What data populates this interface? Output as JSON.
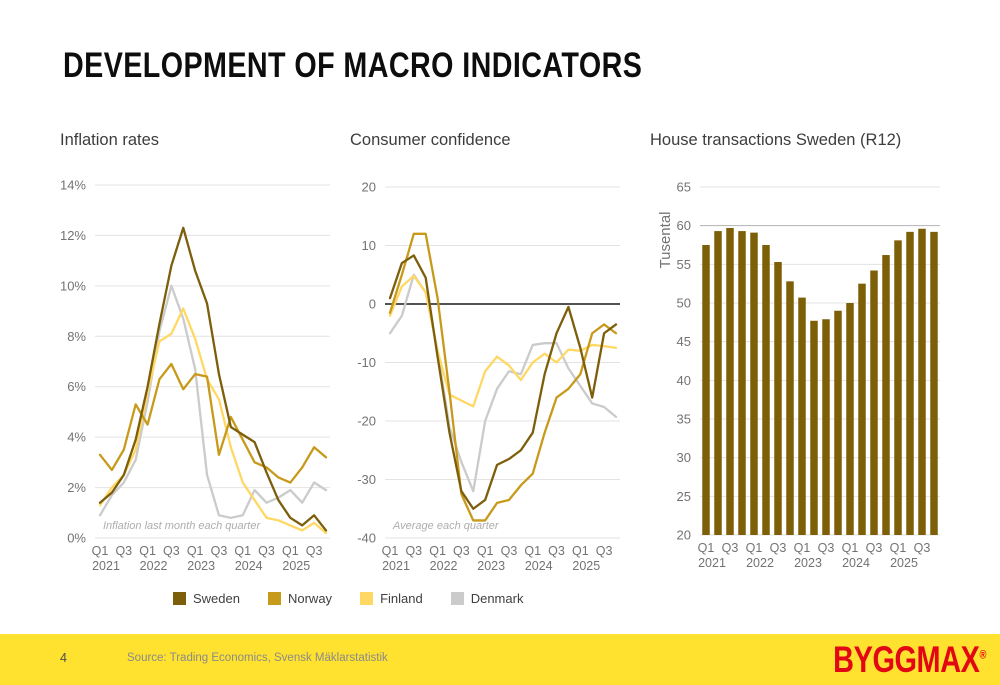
{
  "slide": {
    "title": "DEVELOPMENT OF MACRO INDICATORS",
    "page_number": "4",
    "source": "Source: Trading Economics, Svensk Mäklarstatistik",
    "logo_text": "BYGGMAX",
    "logo_reg": "®"
  },
  "colors": {
    "sweden": "#7C5E0B",
    "norway": "#C79A1B",
    "finland": "#FFD864",
    "denmark": "#CBCBCB",
    "bars": "#7D5F08",
    "grid": "#E3E3E3",
    "emphasized_grid": "#B3B3B3",
    "zero_line": "#1A1A1A",
    "tick_text": "#737373",
    "footnote_text": "#ADADAD",
    "footer_bg": "#FFE12F",
    "logo_red": "#E30613"
  },
  "legend": [
    {
      "label": "Sweden",
      "color": "#7C5E0B"
    },
    {
      "label": "Norway",
      "color": "#C79A1B"
    },
    {
      "label": "Finland",
      "color": "#FFD864"
    },
    {
      "label": "Denmark",
      "color": "#CBCBCB"
    }
  ],
  "chart_data": [
    {
      "type": "line",
      "title": "Inflation rates",
      "footnote": "Inflation last month each quarter",
      "unit": "%",
      "ylim": [
        0,
        14
      ],
      "yticks": [
        0,
        2,
        4,
        6,
        8,
        10,
        12,
        14
      ],
      "grid": true,
      "legend_position": "bottom",
      "categories": [
        "Q1 2021",
        "Q2 2021",
        "Q3 2021",
        "Q4 2021",
        "Q1 2022",
        "Q2 2022",
        "Q3 2022",
        "Q4 2022",
        "Q1 2023",
        "Q2 2023",
        "Q3 2023",
        "Q4 2023",
        "Q1 2024",
        "Q2 2024",
        "Q3 2024",
        "Q4 2024",
        "Q1 2025",
        "Q2 2025",
        "Q3 2025",
        "Q4 2025"
      ],
      "series": [
        {
          "name": "Sweden",
          "color": "#7C5E0B",
          "values": [
            1.4,
            1.8,
            2.5,
            3.9,
            6.0,
            8.5,
            10.8,
            12.3,
            10.6,
            9.3,
            6.5,
            4.4,
            4.1,
            3.8,
            2.6,
            1.5,
            0.8,
            0.5,
            0.9,
            0.3
          ]
        },
        {
          "name": "Norway",
          "color": "#C79A1B",
          "values": [
            3.3,
            2.7,
            3.5,
            5.3,
            4.5,
            6.3,
            6.9,
            5.9,
            6.5,
            6.4,
            3.3,
            4.8,
            3.9,
            3.0,
            2.8,
            2.4,
            2.2,
            2.8,
            3.6,
            3.2
          ]
        },
        {
          "name": "Finland",
          "color": "#FFD864",
          "values": [
            1.3,
            2.0,
            2.5,
            3.5,
            5.8,
            7.8,
            8.1,
            9.1,
            7.9,
            6.3,
            5.5,
            3.6,
            2.2,
            1.5,
            0.8,
            0.7,
            0.5,
            0.3,
            0.6,
            0.2
          ]
        },
        {
          "name": "Denmark",
          "color": "#CBCBCB",
          "values": [
            0.9,
            1.7,
            2.2,
            3.1,
            5.4,
            8.2,
            10.0,
            8.7,
            6.7,
            2.5,
            0.9,
            0.8,
            0.9,
            1.9,
            1.4,
            1.6,
            1.9,
            1.4,
            2.2,
            1.9
          ]
        }
      ]
    },
    {
      "type": "line",
      "title": "Consumer confidence",
      "footnote": "Average each quarter",
      "unit": "",
      "ylim": [
        -40,
        20
      ],
      "yticks": [
        -40,
        -30,
        -20,
        -10,
        0,
        10,
        20
      ],
      "emphasize_zero": true,
      "grid": true,
      "categories": [
        "Q1 2021",
        "Q2 2021",
        "Q3 2021",
        "Q4 2021",
        "Q1 2022",
        "Q2 2022",
        "Q3 2022",
        "Q4 2022",
        "Q1 2023",
        "Q2 2023",
        "Q3 2023",
        "Q4 2023",
        "Q1 2024",
        "Q2 2024",
        "Q3 2024",
        "Q4 2024",
        "Q1 2025",
        "Q2 2025",
        "Q3 2025",
        "Q4 2025"
      ],
      "series": [
        {
          "name": "Sweden",
          "color": "#7C5E0B",
          "values": [
            1,
            7,
            8.3,
            4.5,
            -9,
            -22,
            -32,
            -35,
            -33.5,
            -27.5,
            -26.5,
            -25,
            -22,
            -12,
            -5,
            -0.5,
            -7.5,
            -16,
            -5,
            -3.5
          ]
        },
        {
          "name": "Norway",
          "color": "#C79A1B",
          "values": [
            -1.5,
            5,
            12,
            12,
            1,
            -15,
            -32.5,
            -37,
            -37,
            -34,
            -33.5,
            -31,
            -29,
            -22,
            -16,
            -14.5,
            -12,
            -5,
            -3.5,
            -5
          ]
        },
        {
          "name": "Finland",
          "color": "#FFD864",
          "values": [
            -2,
            3,
            4.8,
            2,
            -8,
            -15.5,
            -16.5,
            -17.5,
            -11.5,
            -9,
            -10.5,
            -13,
            -10,
            -8.5,
            -10,
            -7.8,
            -8,
            -7,
            -7.2,
            -7.5
          ]
        },
        {
          "name": "Denmark",
          "color": "#CBCBCB",
          "values": [
            -5,
            -2,
            5,
            2,
            -8,
            -21,
            -27,
            -32,
            -20,
            -14.5,
            -11.5,
            -12,
            -7,
            -6.7,
            -6.7,
            -11,
            -14,
            -17,
            -17.6,
            -19.3
          ]
        }
      ]
    },
    {
      "type": "bar",
      "title": "House transactions Sweden (R12)",
      "ylabel": "Tusental",
      "ylim": [
        20,
        65
      ],
      "yticks": [
        20,
        25,
        30,
        35,
        40,
        45,
        50,
        55,
        60,
        65
      ],
      "emphasized_gridline": 60,
      "grid": true,
      "bar_color": "#7D5F08",
      "categories": [
        "Q1 2021",
        "Q2 2021",
        "Q3 2021",
        "Q4 2021",
        "Q1 2022",
        "Q2 2022",
        "Q3 2022",
        "Q4 2022",
        "Q1 2023",
        "Q2 2023",
        "Q3 2023",
        "Q4 2023",
        "Q1 2024",
        "Q2 2024",
        "Q3 2024",
        "Q4 2024",
        "Q1 2025",
        "Q2 2025",
        "Q3 2025",
        "Q4 2025"
      ],
      "values": [
        57.5,
        59.3,
        59.7,
        59.3,
        59.1,
        57.5,
        55.3,
        52.8,
        50.7,
        47.7,
        47.9,
        49.0,
        50.0,
        52.5,
        54.2,
        56.2,
        58.1,
        59.2,
        59.6,
        59.2
      ]
    }
  ]
}
